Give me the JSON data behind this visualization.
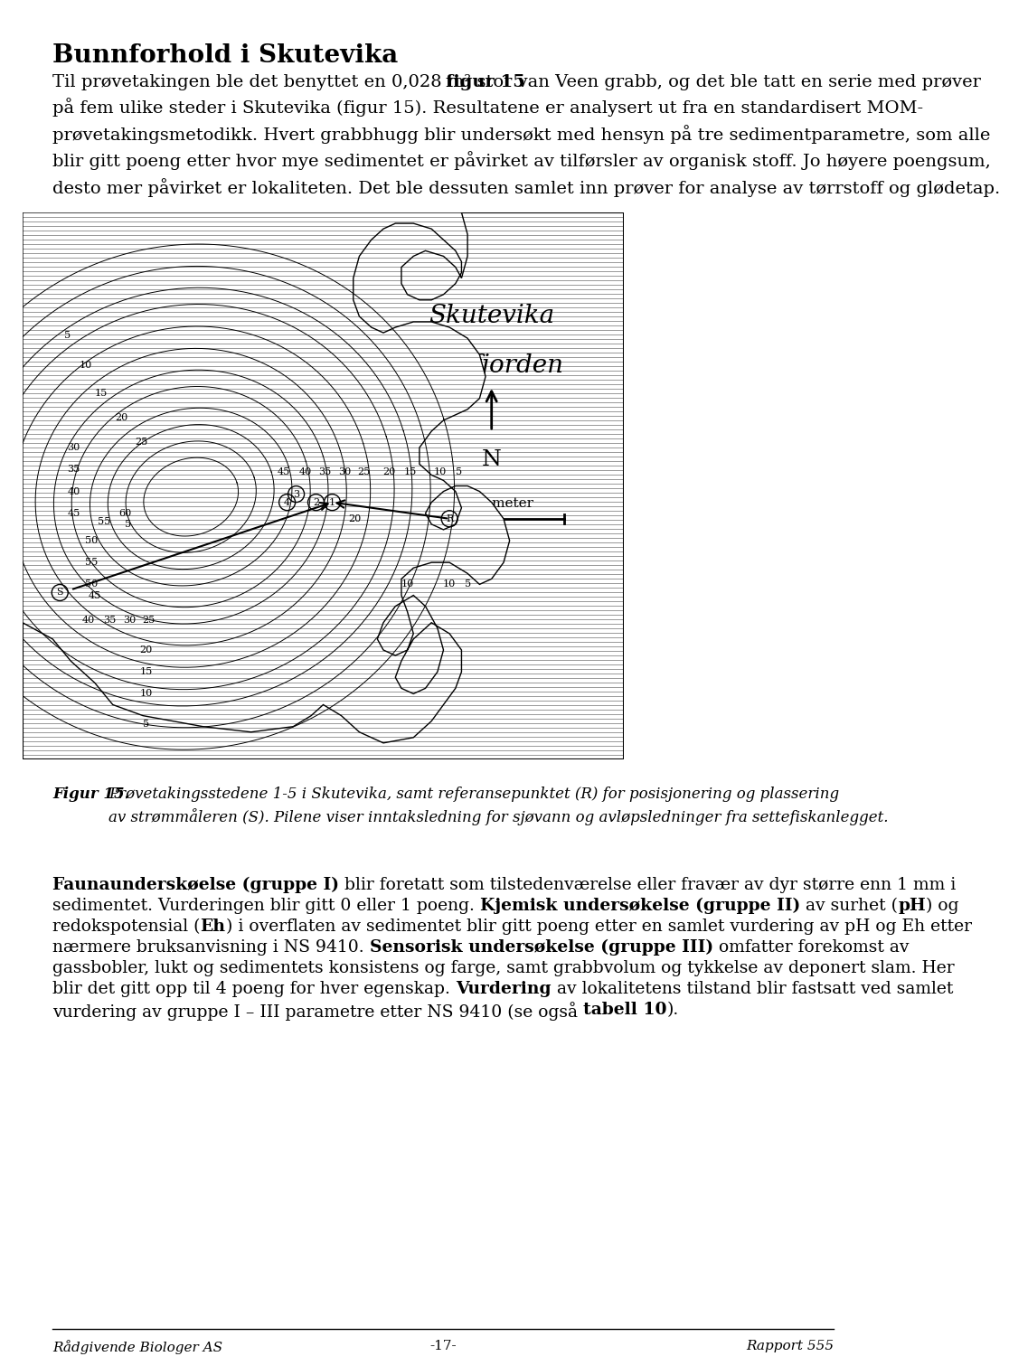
{
  "title": "Bunnforhold i Skutevika",
  "paragraph1": "Til prøvetakingen ble det benyttet en 0,028 m² stor van Veen grabb, og det ble tatt en serie med prøver på fem ulike steder i Skutevika (",
  "paragraph1_bold": "figur 15",
  "paragraph1_end": "). Resultatene er analysert ut fra en standardisert MOM-prøvetakingsmetodikk. Hvert grabbhugg blir undersøkt med hensyn på tre sedimentparametre, som alle blir gitt poeng etter hvor mye sedimentet er påvirket av tilførsler av organisk stoff. Jo høyere poengsum, desto mer påvirket er lokaliteten. Det ble dessuten samlet inn prøver for analyse av tørrstoff og glødetap.",
  "map_title1": "Skutevika",
  "map_title2": "Masfjorden",
  "figure_caption_bold": "Figur 15.",
  "figure_caption": " Prøvetakingsstedene 1-5 i Skutevika, samt referansepunktet (R) for posisjonering og plassering av strømmåleren (S). Pilene viser inntaksledning for sjøvann og avløpsledninger fra settefiskanlegget.",
  "paragraph2_parts": [
    {
      "text": "Faunaunderskøelse (gruppe I)",
      "bold": true
    },
    {
      "text": " blir foretatt som tilstedeværelse eller fravær av dyr større enn 1 mm i sedimentet. Vurderingen blir gitt 0 eller 1 poeng. ",
      "bold": false
    },
    {
      "text": "Kjemisk undersøkelse (gruppe II)",
      "bold": true
    },
    {
      "text": " av surhet (",
      "bold": false
    },
    {
      "text": "pH",
      "bold": true
    },
    {
      "text": ") og redokspotensial (",
      "bold": false
    },
    {
      "text": "Eh",
      "bold": true
    },
    {
      "text": ") i overflaten av sedimentet blir gitt poeng etter en samlet vurdering av pH og Eh etter nærmere bruksanvisning i NS 9410. ",
      "bold": false
    },
    {
      "text": "Sensorisk undersøkelse (gruppe III)",
      "bold": true
    },
    {
      "text": " omfatter forekomst av gassbobler, lukt og sedimentets konsistens og farge, samt grabbvolum og tykkelse av deponert slam. Her blir det gitt opp til 4 poeng for hver egenskap. ",
      "bold": false
    },
    {
      "text": "Vurdering",
      "bold": true
    },
    {
      "text": " av lokalitetens tilstand blir fastsatt ved samlet vurdering av gruppe I – III parametre etter NS 9410 (se også ",
      "bold": false
    },
    {
      "text": "tabell 10",
      "bold": true
    },
    {
      "text": ").",
      "bold": false
    }
  ],
  "footer_left": "Rådgivende Biologer AS",
  "footer_center": "-17-",
  "footer_right": "Rapport 555",
  "background_color": "#ffffff"
}
